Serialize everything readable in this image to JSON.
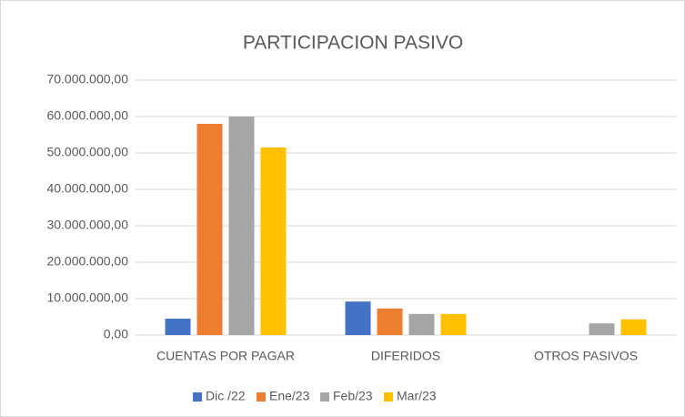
{
  "chart_data": {
    "type": "bar",
    "title": "PARTICIPACION PASIVO",
    "categories": [
      "CUENTAS POR PAGAR",
      "DIFERIDOS",
      "OTROS PASIVOS"
    ],
    "series": [
      {
        "name": "Dic /22",
        "color": "#4472c4",
        "values": [
          4500000,
          9200000,
          0
        ]
      },
      {
        "name": "Ene/23",
        "color": "#ed7d31",
        "values": [
          58000000,
          7300000,
          0
        ]
      },
      {
        "name": "Feb/23",
        "color": "#a5a5a5",
        "values": [
          60000000,
          5800000,
          3200000
        ]
      },
      {
        "name": "Mar/23",
        "color": "#ffc000",
        "values": [
          51500000,
          5800000,
          4300000
        ]
      }
    ],
    "ylim": [
      0,
      70000000
    ],
    "yticks": [
      {
        "value": 0,
        "label": "0,00"
      },
      {
        "value": 10000000,
        "label": "10.000.000,00"
      },
      {
        "value": 20000000,
        "label": "20.000.000,00"
      },
      {
        "value": 30000000,
        "label": "30.000.000,00"
      },
      {
        "value": 40000000,
        "label": "40.000.000,00"
      },
      {
        "value": 50000000,
        "label": "50.000.000,00"
      },
      {
        "value": 60000000,
        "label": "60.000.000,00"
      },
      {
        "value": 70000000,
        "label": "70.000.000,00"
      }
    ],
    "grid": true,
    "legend": "bottom"
  }
}
